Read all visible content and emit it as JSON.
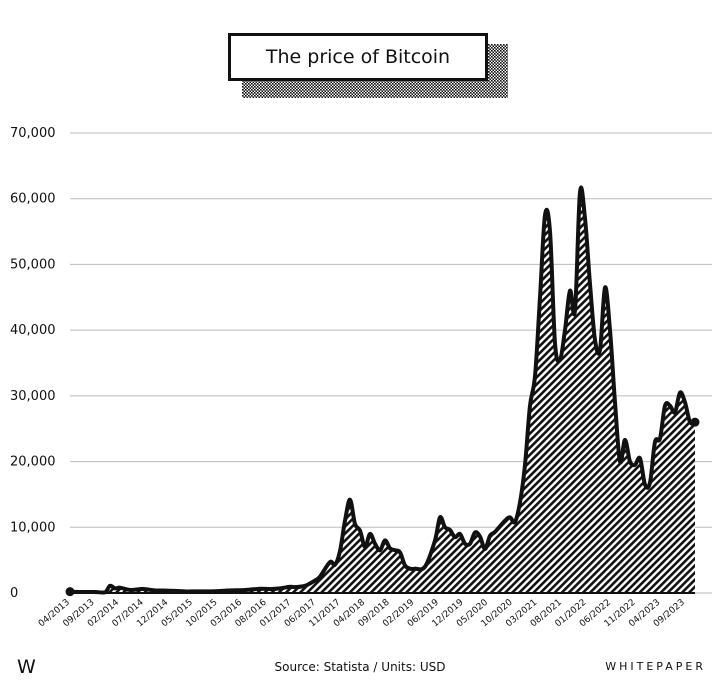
{
  "chart_data": {
    "type": "area",
    "title": "The price of Bitcoin",
    "xlabel": "",
    "ylabel": "",
    "ylim": [
      0,
      70000
    ],
    "yticks": [
      0,
      10000,
      20000,
      30000,
      40000,
      50000,
      60000,
      70000
    ],
    "ytick_labels": [
      "0",
      "10,000",
      "20,000",
      "30,000",
      "40,000",
      "50,000",
      "60,000",
      "70,000"
    ],
    "xtick_labels": [
      "04/2013",
      "09/2013",
      "02/2014",
      "07/2014",
      "12/2014",
      "05/2015",
      "10/2015",
      "03/2016",
      "08/2016",
      "01/2017",
      "06/2017",
      "11/2017",
      "04/2018",
      "09/2018",
      "02/2019",
      "06/2019",
      "12/2019",
      "05/2020",
      "10/2020",
      "03/2021",
      "08/2021",
      "01/2022",
      "06/2022",
      "11/2022",
      "04/2023",
      "09/2023"
    ],
    "grid": "horizontal",
    "x": [
      "2013-04",
      "2013-06",
      "2013-09",
      "2013-11",
      "2013-12",
      "2014-01",
      "2014-02",
      "2014-04",
      "2014-06",
      "2014-07",
      "2014-09",
      "2014-12",
      "2015-03",
      "2015-05",
      "2015-08",
      "2015-10",
      "2015-12",
      "2016-03",
      "2016-06",
      "2016-08",
      "2016-10",
      "2016-12",
      "2017-01",
      "2017-03",
      "2017-05",
      "2017-06",
      "2017-08",
      "2017-09",
      "2017-10",
      "2017-11",
      "2017-12",
      "2018-01",
      "2018-02",
      "2018-03",
      "2018-04",
      "2018-05",
      "2018-06",
      "2018-07",
      "2018-08",
      "2018-09",
      "2018-10",
      "2018-11",
      "2018-12",
      "2019-01",
      "2019-03",
      "2019-05",
      "2019-06",
      "2019-07",
      "2019-08",
      "2019-09",
      "2019-10",
      "2019-11",
      "2019-12",
      "2020-01",
      "2020-02",
      "2020-03",
      "2020-04",
      "2020-05",
      "2020-07",
      "2020-08",
      "2020-09",
      "2020-10",
      "2020-11",
      "2020-12",
      "2021-01",
      "2021-02",
      "2021-03",
      "2021-04",
      "2021-05",
      "2021-06",
      "2021-07",
      "2021-08",
      "2021-09",
      "2021-10",
      "2021-11",
      "2021-12",
      "2022-01",
      "2022-02",
      "2022-03",
      "2022-04",
      "2022-05",
      "2022-06",
      "2022-07",
      "2022-08",
      "2022-09",
      "2022-10",
      "2022-11",
      "2022-12",
      "2023-01",
      "2023-02",
      "2023-03",
      "2023-04",
      "2023-05",
      "2023-06",
      "2023-07",
      "2023-08",
      "2023-09"
    ],
    "values": [
      200,
      150,
      150,
      100,
      1100,
      700,
      800,
      450,
      600,
      600,
      400,
      350,
      250,
      250,
      250,
      300,
      400,
      450,
      650,
      600,
      700,
      950,
      900,
      1100,
      1900,
      2500,
      4700,
      4300,
      6400,
      11000,
      14200,
      10500,
      9500,
      7000,
      9000,
      7500,
      6500,
      8000,
      6800,
      6500,
      6200,
      4200,
      3700,
      3700,
      4000,
      8000,
      11500,
      10000,
      9600,
      8500,
      9000,
      7500,
      7500,
      9200,
      8600,
      6700,
      8700,
      9300,
      11000,
      11500,
      10800,
      13800,
      19500,
      28500,
      33000,
      45000,
      57500,
      55000,
      38000,
      35500,
      40000,
      46000,
      43000,
      61000,
      57000,
      47000,
      38500,
      37000,
      46500,
      40000,
      29000,
      20000,
      23300,
      20000,
      19500,
      20500,
      16500,
      16800,
      23000,
      23500,
      28500,
      28500,
      27500,
      30500,
      29000,
      26000,
      26000
    ]
  },
  "footer": {
    "logo": "W",
    "source": "Source: Statista / Units: USD",
    "brand": "WHITEPAPER"
  }
}
